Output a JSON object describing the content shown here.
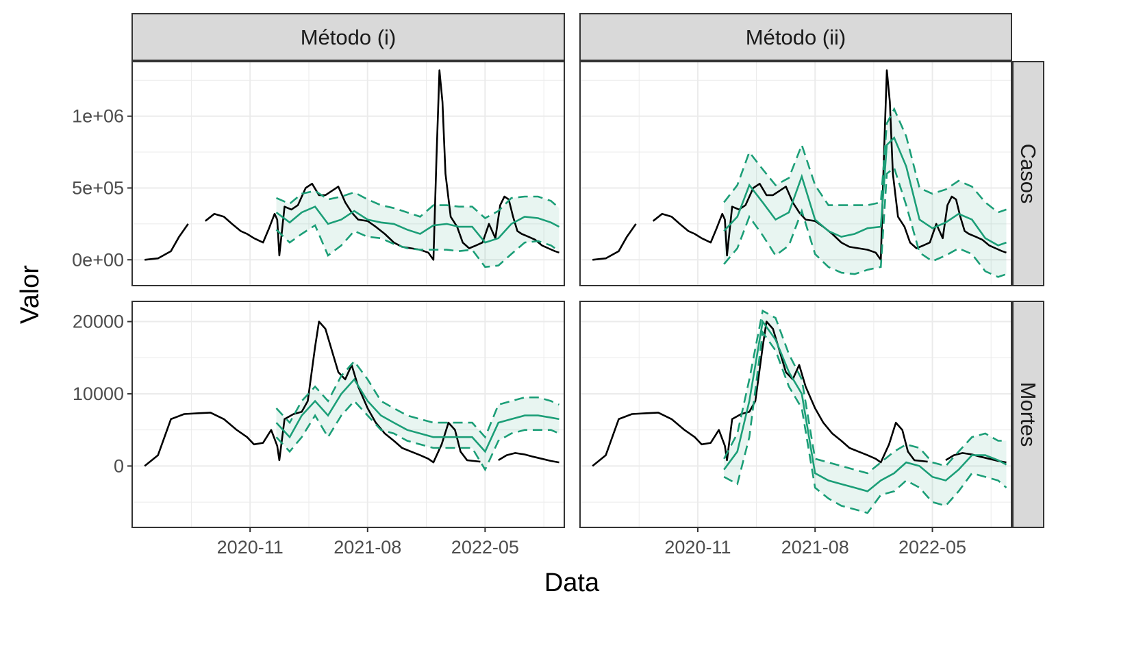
{
  "chart_data": {
    "type": "line",
    "xlabel": "Data",
    "ylabel": "Valor",
    "facet_columns": [
      "Método (i)",
      "Método (ii)"
    ],
    "facet_rows": [
      "Casos",
      "Mortes"
    ],
    "x_ticks": [
      "2020-11",
      "2021-08",
      "2022-05"
    ],
    "x_range": [
      "2020-02-01",
      "2022-11-01"
    ],
    "y_ticks": {
      "Casos": [
        {
          "value": 0,
          "label": "0e+00"
        },
        {
          "value": 500000,
          "label": "5e+05"
        },
        {
          "value": 1000000,
          "label": "1e+06"
        }
      ],
      "Mortes": [
        {
          "value": 0,
          "label": "0"
        },
        {
          "value": 10000,
          "label": "10000"
        },
        {
          "value": 20000,
          "label": "20000"
        }
      ]
    },
    "y_ranges": {
      "Casos": [
        -180000,
        1380000
      ],
      "Mortes": [
        -8500,
        22800
      ]
    },
    "grid": true,
    "colors": {
      "observed": "#000000",
      "forecast": "#1b9e77",
      "band_fill": "#1b9e77"
    },
    "observed": {
      "Casos": {
        "x": [
          "2020-03-01",
          "2020-04-01",
          "2020-05-01",
          "2020-05-20",
          "2020-06-10",
          "2020-07-01",
          "2020-07-20",
          "2020-08-10",
          "2020-09-01",
          "2020-09-20",
          "2020-10-10",
          "2020-10-25",
          "2020-11-10",
          "2020-12-01",
          "2020-12-15",
          "2020-12-28",
          "2021-01-03",
          "2021-01-08",
          "2021-01-20",
          "2021-02-05",
          "2021-02-20",
          "2021-03-10",
          "2021-03-25",
          "2021-04-10",
          "2021-04-25",
          "2021-05-10",
          "2021-05-25",
          "2021-06-10",
          "2021-06-25",
          "2021-07-10",
          "2021-08-01",
          "2021-08-20",
          "2021-09-10",
          "2021-10-01",
          "2021-10-20",
          "2021-11-10",
          "2021-12-01",
          "2021-12-20",
          "2022-01-01",
          "2022-01-08",
          "2022-01-15",
          "2022-01-22",
          "2022-01-29",
          "2022-02-10",
          "2022-02-25",
          "2022-03-10",
          "2022-03-25",
          "2022-04-10",
          "2022-04-25",
          "2022-05-10",
          "2022-05-25",
          "2022-06-05",
          "2022-06-15",
          "2022-06-25",
          "2022-07-05",
          "2022-07-15",
          "2022-07-25",
          "2022-08-10",
          "2022-08-25",
          "2022-09-10",
          "2022-09-25",
          "2022-10-10",
          "2022-10-20"
        ],
        "y": [
          0,
          10000,
          60000,
          160000,
          250000,
          null,
          270000,
          320000,
          300000,
          250000,
          200000,
          180000,
          150000,
          120000,
          220000,
          320000,
          280000,
          30000,
          370000,
          350000,
          380000,
          500000,
          530000,
          450000,
          450000,
          480000,
          510000,
          400000,
          330000,
          280000,
          270000,
          230000,
          180000,
          120000,
          90000,
          80000,
          70000,
          50000,
          0,
          700000,
          1320000,
          1100000,
          600000,
          300000,
          230000,
          120000,
          80000,
          100000,
          120000,
          250000,
          150000,
          380000,
          440000,
          420000,
          300000,
          200000,
          180000,
          160000,
          140000,
          100000,
          80000,
          60000,
          50000
        ]
      },
      "Mortes": {
        "x": [
          "2020-03-01",
          "2020-04-01",
          "2020-05-01",
          "2020-06-01",
          "2020-07-01",
          "2020-08-01",
          "2020-09-01",
          "2020-10-01",
          "2020-10-25",
          "2020-11-10",
          "2020-12-01",
          "2020-12-20",
          "2021-01-03",
          "2021-01-08",
          "2021-01-20",
          "2021-02-10",
          "2021-03-01",
          "2021-03-15",
          "2021-04-01",
          "2021-04-10",
          "2021-04-25",
          "2021-05-10",
          "2021-05-25",
          "2021-06-10",
          "2021-06-25",
          "2021-07-10",
          "2021-08-01",
          "2021-08-20",
          "2021-09-10",
          "2021-10-01",
          "2021-10-20",
          "2021-11-10",
          "2021-12-01",
          "2021-12-20",
          "2022-01-01",
          "2022-01-20",
          "2022-02-05",
          "2022-02-20",
          "2022-03-05",
          "2022-03-20",
          "2022-04-05",
          "2022-04-20",
          "2022-05-05",
          "2022-05-15",
          "2022-06-01",
          "2022-06-20",
          "2022-07-10",
          "2022-08-01",
          "2022-08-20",
          "2022-09-10",
          "2022-10-01",
          "2022-10-20"
        ],
        "y": [
          0,
          1500,
          6500,
          7200,
          7300,
          7400,
          6500,
          5000,
          4000,
          3000,
          3200,
          5000,
          2800,
          800,
          6500,
          7200,
          7500,
          9000,
          16500,
          20000,
          19000,
          16000,
          13000,
          12000,
          14000,
          11000,
          8000,
          6000,
          4500,
          3500,
          2500,
          2000,
          1500,
          1000,
          500,
          3000,
          6000,
          5000,
          2000,
          800,
          700,
          600,
          null,
          null,
          800,
          1500,
          1800,
          1600,
          1300,
          1000,
          700,
          500
        ]
      }
    },
    "forecasts": {
      "Método (i)": {
        "Casos": {
          "x": [
            "2021-01-01",
            "2021-02-01",
            "2021-03-01",
            "2021-04-01",
            "2021-05-01",
            "2021-06-01",
            "2021-07-01",
            "2021-08-01",
            "2021-09-01",
            "2021-10-01",
            "2021-11-01",
            "2021-12-01",
            "2022-01-01",
            "2022-02-01",
            "2022-03-01",
            "2022-04-01",
            "2022-05-01",
            "2022-06-01",
            "2022-07-01",
            "2022-08-01",
            "2022-09-01",
            "2022-10-01",
            "2022-10-20"
          ],
          "mean": [
            330000,
            260000,
            330000,
            370000,
            250000,
            280000,
            340000,
            280000,
            260000,
            250000,
            210000,
            180000,
            240000,
            250000,
            230000,
            230000,
            120000,
            150000,
            250000,
            300000,
            290000,
            260000,
            230000
          ],
          "lower": [
            210000,
            120000,
            180000,
            240000,
            30000,
            100000,
            200000,
            160000,
            150000,
            110000,
            80000,
            70000,
            70000,
            70000,
            60000,
            70000,
            -50000,
            -40000,
            40000,
            120000,
            130000,
            100000,
            60000
          ],
          "upper": [
            430000,
            390000,
            460000,
            480000,
            420000,
            440000,
            470000,
            420000,
            380000,
            360000,
            330000,
            300000,
            380000,
            380000,
            370000,
            370000,
            290000,
            340000,
            430000,
            440000,
            440000,
            410000,
            360000
          ]
        },
        "Mortes": {
          "x": [
            "2021-01-01",
            "2021-02-01",
            "2021-03-01",
            "2021-04-01",
            "2021-05-01",
            "2021-06-01",
            "2021-07-01",
            "2021-08-01",
            "2021-09-01",
            "2021-10-01",
            "2021-11-01",
            "2021-12-01",
            "2022-01-01",
            "2022-02-01",
            "2022-03-01",
            "2022-04-01",
            "2022-05-01",
            "2022-06-01",
            "2022-07-01",
            "2022-08-01",
            "2022-09-01",
            "2022-10-01",
            "2022-10-20"
          ],
          "mean": [
            6000,
            4000,
            7000,
            9000,
            7000,
            10000,
            12000,
            9000,
            7000,
            6000,
            5000,
            4500,
            4000,
            4000,
            4000,
            4000,
            2000,
            6000,
            6500,
            7000,
            7000,
            6700,
            6500
          ],
          "lower": [
            4000,
            2000,
            4000,
            7000,
            4000,
            7000,
            9000,
            7000,
            5000,
            4500,
            3500,
            3000,
            2500,
            2500,
            2500,
            2500,
            -500,
            3500,
            4500,
            5000,
            5000,
            5000,
            4500
          ],
          "upper": [
            8000,
            6000,
            9000,
            11000,
            9000,
            12500,
            14500,
            12000,
            9000,
            8000,
            7000,
            6500,
            6000,
            6000,
            6000,
            6000,
            4000,
            8500,
            9000,
            9500,
            9500,
            9000,
            8500
          ]
        }
      },
      "Método (ii)": {
        "Casos": {
          "x": [
            "2021-01-01",
            "2021-02-01",
            "2021-03-01",
            "2021-04-01",
            "2021-05-01",
            "2021-06-01",
            "2021-07-01",
            "2021-08-01",
            "2021-09-01",
            "2021-10-01",
            "2021-11-01",
            "2021-12-01",
            "2022-01-01",
            "2022-01-15",
            "2022-02-01",
            "2022-03-01",
            "2022-04-01",
            "2022-05-01",
            "2022-06-01",
            "2022-07-01",
            "2022-08-01",
            "2022-09-01",
            "2022-10-01",
            "2022-10-20"
          ],
          "mean": [
            200000,
            300000,
            520000,
            400000,
            280000,
            330000,
            580000,
            280000,
            200000,
            160000,
            180000,
            220000,
            230000,
            800000,
            850000,
            650000,
            280000,
            220000,
            260000,
            320000,
            280000,
            150000,
            100000,
            120000
          ],
          "lower": [
            -30000,
            80000,
            300000,
            170000,
            30000,
            100000,
            340000,
            40000,
            -50000,
            -90000,
            -100000,
            -70000,
            -50000,
            600000,
            640000,
            380000,
            50000,
            -10000,
            30000,
            80000,
            40000,
            -80000,
            -120000,
            -100000
          ],
          "upper": [
            400000,
            520000,
            750000,
            630000,
            520000,
            570000,
            800000,
            520000,
            380000,
            380000,
            380000,
            380000,
            400000,
            950000,
            1050000,
            860000,
            500000,
            460000,
            490000,
            550000,
            510000,
            400000,
            330000,
            350000
          ]
        },
        "Mortes": {
          "x": [
            "2021-01-01",
            "2021-02-01",
            "2021-03-01",
            "2021-04-01",
            "2021-05-01",
            "2021-06-01",
            "2021-07-01",
            "2021-08-01",
            "2021-09-01",
            "2021-10-01",
            "2021-11-01",
            "2021-12-01",
            "2022-01-01",
            "2022-02-01",
            "2022-03-01",
            "2022-04-01",
            "2022-05-01",
            "2022-06-01",
            "2022-07-01",
            "2022-08-01",
            "2022-09-01",
            "2022-10-01",
            "2022-10-20"
          ],
          "mean": [
            -500,
            2000,
            9000,
            20000,
            17500,
            13000,
            10000,
            -1000,
            -2000,
            -2500,
            -3000,
            -3500,
            -2000,
            -1000,
            500,
            0,
            -1500,
            -2000,
            -500,
            1500,
            1500,
            800,
            200
          ],
          "lower": [
            -1500,
            -2500,
            4000,
            18500,
            16000,
            11000,
            8000,
            -3000,
            -4500,
            -5500,
            -6000,
            -6500,
            -4000,
            -3500,
            -2000,
            -3000,
            -5000,
            -5500,
            -3500,
            -1000,
            -1500,
            -2000,
            -3000
          ],
          "upper": [
            1000,
            4500,
            12000,
            21500,
            20500,
            15500,
            12000,
            1000,
            500,
            0,
            -500,
            -1000,
            500,
            2000,
            3000,
            2500,
            500,
            0,
            2000,
            4000,
            4500,
            3500,
            3500
          ]
        }
      }
    }
  }
}
